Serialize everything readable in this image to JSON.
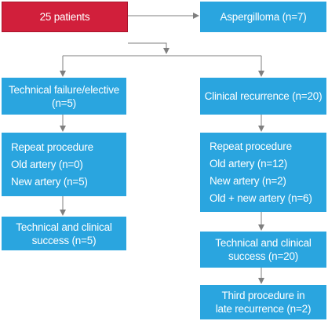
{
  "start": {
    "label": "25 patients"
  },
  "aspergilloma": {
    "label": "Aspergilloma (n=7)"
  },
  "left_branch": {
    "header": [
      "Technical failure/elective",
      "(n=5)"
    ],
    "repeat": [
      "Repeat procedure",
      "Old artery (n=0)",
      "New artery (n=5)"
    ],
    "success": [
      "Technical and clinical",
      "success (n=5)"
    ]
  },
  "right_branch": {
    "header": [
      "Clinical recurrence (n=20)"
    ],
    "repeat": [
      "Repeat procedure",
      "Old artery (n=12)",
      "New artery (n=2)",
      "Old + new artery (n=6)"
    ],
    "success": [
      "Technical and clinical",
      "success (n=20)"
    ],
    "third": [
      "Third procedure in",
      "late recurrence (n=2)"
    ]
  },
  "colors": {
    "box": "#2aa5df",
    "start_box": "#d11f3b",
    "connector": "#7f7f7f"
  }
}
